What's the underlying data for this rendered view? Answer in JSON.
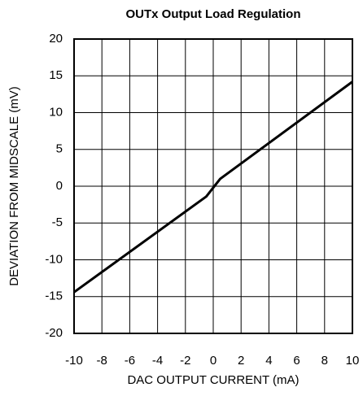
{
  "chart_data": {
    "type": "line",
    "title": "OUTx Output Load Regulation",
    "xlabel": "DAC OUTPUT CURRENT (mA)",
    "ylabel": "DEVIATION FROM MIDSCALE (mV)",
    "x": [
      -10,
      -0.5,
      0.5,
      10
    ],
    "values": [
      -14.4,
      -1.4,
      1.0,
      14.2
    ],
    "color": "#000000",
    "xlim": [
      -10,
      10
    ],
    "xticks": [
      -10,
      -8,
      -6,
      -4,
      -2,
      0,
      2,
      4,
      6,
      8,
      10
    ],
    "ylim": [
      -20,
      20
    ],
    "yticks": [
      -20,
      -15,
      -10,
      -5,
      0,
      5,
      10,
      15,
      20
    ],
    "grid": true
  }
}
